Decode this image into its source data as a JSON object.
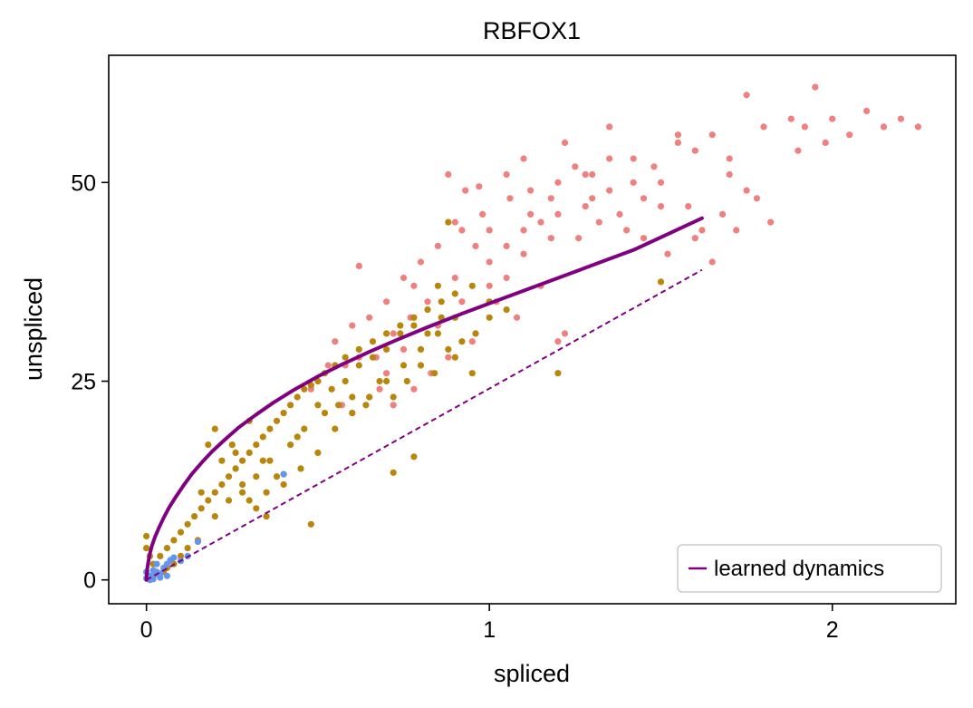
{
  "chart_data": {
    "type": "scatter",
    "title": "RBFOX1",
    "xlabel": "spliced",
    "ylabel": "unspliced",
    "xlim": [
      -0.11,
      2.36
    ],
    "ylim": [
      -3,
      66
    ],
    "xticks": [
      0,
      1,
      2
    ],
    "yticks": [
      0,
      25,
      50
    ],
    "grid": false,
    "legend": {
      "position": "lower-right",
      "entries": [
        "learned dynamics"
      ]
    },
    "colors": {
      "cluster_a": "#f08080",
      "cluster_b": "#b8860b",
      "cluster_c": "#6495ed",
      "dynamics": "#800080"
    },
    "series": [
      {
        "color": "#f08080",
        "points": [
          [
            0.88,
            51
          ],
          [
            0.93,
            49
          ],
          [
            0.97,
            49.5
          ],
          [
            1.05,
            51
          ],
          [
            1.12,
            49
          ],
          [
            1.2,
            50
          ],
          [
            1.25,
            52
          ],
          [
            1.3,
            51
          ],
          [
            1.35,
            53
          ],
          [
            1.42,
            53
          ],
          [
            1.48,
            52
          ],
          [
            1.55,
            55
          ],
          [
            1.6,
            54
          ],
          [
            1.65,
            56
          ],
          [
            1.7,
            53
          ],
          [
            1.75,
            61
          ],
          [
            1.8,
            57
          ],
          [
            1.88,
            58
          ],
          [
            1.92,
            57
          ],
          [
            1.95,
            62
          ],
          [
            2.0,
            58
          ],
          [
            2.05,
            56
          ],
          [
            2.1,
            59
          ],
          [
            2.15,
            57
          ],
          [
            2.2,
            58
          ],
          [
            2.25,
            57
          ],
          [
            1.55,
            56
          ],
          [
            1.35,
            57
          ],
          [
            1.22,
            55
          ],
          [
            1.1,
            53
          ],
          [
            0.98,
            46
          ],
          [
            0.92,
            44
          ],
          [
            0.85,
            42
          ],
          [
            0.8,
            40
          ],
          [
            0.75,
            38
          ],
          [
            0.7,
            35
          ],
          [
            0.65,
            33
          ],
          [
            0.6,
            32
          ],
          [
            0.55,
            30
          ],
          [
            0.62,
            39.5
          ],
          [
            0.78,
            37
          ],
          [
            0.9,
            38
          ],
          [
            1.0,
            40
          ],
          [
            1.05,
            42
          ],
          [
            1.1,
            44
          ],
          [
            1.15,
            45
          ],
          [
            1.2,
            46
          ],
          [
            1.28,
            47
          ],
          [
            1.32,
            45
          ],
          [
            1.38,
            46
          ],
          [
            1.45,
            48
          ],
          [
            1.5,
            47
          ],
          [
            1.58,
            47
          ],
          [
            1.62,
            44
          ],
          [
            1.68,
            46
          ],
          [
            1.72,
            44
          ],
          [
            1.78,
            48
          ],
          [
            1.82,
            45
          ],
          [
            1.9,
            54
          ],
          [
            1.98,
            55
          ],
          [
            1.02,
            35
          ],
          [
            1.08,
            33
          ],
          [
            1.15,
            37
          ],
          [
            1.2,
            30
          ],
          [
            1.22,
            31
          ],
          [
            0.95,
            30
          ],
          [
            0.88,
            28
          ],
          [
            0.83,
            26
          ],
          [
            0.78,
            24
          ],
          [
            0.72,
            22
          ],
          [
            0.68,
            24
          ],
          [
            0.6,
            21
          ],
          [
            0.57,
            22
          ],
          [
            0.65,
            23
          ],
          [
            0.7,
            26
          ],
          [
            0.75,
            29
          ],
          [
            0.85,
            32
          ],
          [
            0.92,
            35
          ],
          [
            1.0,
            37
          ],
          [
            1.05,
            38
          ],
          [
            1.1,
            41
          ],
          [
            1.18,
            43
          ],
          [
            1.26,
            43
          ],
          [
            1.3,
            48
          ],
          [
            1.4,
            44
          ],
          [
            1.45,
            43
          ],
          [
            1.52,
            41
          ],
          [
            1.6,
            43
          ],
          [
            1.65,
            40
          ],
          [
            1.7,
            51
          ],
          [
            1.75,
            49
          ],
          [
            1.5,
            50
          ],
          [
            1.42,
            50
          ],
          [
            1.35,
            49
          ],
          [
            1.28,
            51
          ],
          [
            1.18,
            48
          ],
          [
            1.12,
            46
          ],
          [
            1.06,
            48
          ],
          [
            1.0,
            44
          ],
          [
            0.96,
            42
          ],
          [
            0.9,
            45
          ],
          [
            0.82,
            35
          ],
          [
            0.77,
            33
          ],
          [
            0.72,
            31
          ],
          [
            0.67,
            28
          ],
          [
            0.62,
            28
          ],
          [
            0.58,
            27
          ],
          [
            0.53,
            27
          ],
          [
            0.5,
            25
          ],
          [
            0.48,
            24
          ]
        ]
      },
      {
        "color": "#b8860b",
        "points": [
          [
            0.02,
            2
          ],
          [
            0.04,
            3
          ],
          [
            0.06,
            4
          ],
          [
            0.08,
            5
          ],
          [
            0.1,
            6
          ],
          [
            0.12,
            7
          ],
          [
            0.14,
            8
          ],
          [
            0.16,
            9
          ],
          [
            0.18,
            10
          ],
          [
            0.2,
            11
          ],
          [
            0.22,
            12
          ],
          [
            0.24,
            13
          ],
          [
            0.26,
            14
          ],
          [
            0.28,
            15
          ],
          [
            0.3,
            16
          ],
          [
            0.32,
            17
          ],
          [
            0.34,
            18
          ],
          [
            0.36,
            19
          ],
          [
            0.38,
            20
          ],
          [
            0.4,
            21
          ],
          [
            0.42,
            22
          ],
          [
            0.44,
            23
          ],
          [
            0.46,
            24
          ],
          [
            0.48,
            24.5
          ],
          [
            0.5,
            25
          ],
          [
            0.52,
            26
          ],
          [
            0.55,
            27
          ],
          [
            0.58,
            28
          ],
          [
            0.62,
            29
          ],
          [
            0.66,
            30
          ],
          [
            0.7,
            31
          ],
          [
            0.74,
            32
          ],
          [
            0.78,
            33
          ],
          [
            0.82,
            34
          ],
          [
            0.86,
            35
          ],
          [
            0.9,
            36
          ],
          [
            0.95,
            37
          ],
          [
            1.0,
            35
          ],
          [
            1.05,
            34
          ],
          [
            0.2,
            19
          ],
          [
            0.18,
            17
          ],
          [
            0.25,
            17
          ],
          [
            0.28,
            12
          ],
          [
            0.3,
            10
          ],
          [
            0.32,
            9
          ],
          [
            0.35,
            8
          ],
          [
            0.4,
            12
          ],
          [
            0.45,
            14
          ],
          [
            0.5,
            16
          ],
          [
            0.55,
            19
          ],
          [
            0.6,
            21
          ],
          [
            0.65,
            23
          ],
          [
            0.7,
            25
          ],
          [
            0.75,
            27
          ],
          [
            0.8,
            29
          ],
          [
            0.85,
            31
          ],
          [
            0.9,
            33
          ],
          [
            0.15,
            5
          ],
          [
            0.12,
            4
          ],
          [
            0.1,
            3
          ],
          [
            0.08,
            2
          ],
          [
            0.06,
            1.5
          ],
          [
            0.05,
            1
          ],
          [
            0.03,
            0.8
          ],
          [
            0.01,
            0.5
          ],
          [
            0.0,
            5.5
          ],
          [
            0.0,
            4
          ],
          [
            0.01,
            3
          ],
          [
            0.22,
            15
          ],
          [
            0.26,
            16
          ],
          [
            0.3,
            20
          ],
          [
            0.34,
            15
          ],
          [
            0.38,
            13
          ],
          [
            0.42,
            17
          ],
          [
            0.46,
            19
          ],
          [
            0.5,
            22
          ],
          [
            0.54,
            24
          ],
          [
            0.58,
            25
          ],
          [
            0.62,
            27
          ],
          [
            0.66,
            28
          ],
          [
            0.7,
            29
          ],
          [
            0.74,
            31
          ],
          [
            0.78,
            32
          ],
          [
            0.82,
            31
          ],
          [
            0.86,
            33
          ],
          [
            0.9,
            28
          ],
          [
            0.95,
            26
          ],
          [
            1.2,
            26
          ],
          [
            1.5,
            37.5
          ],
          [
            0.78,
            15.5
          ],
          [
            0.72,
            13.5
          ],
          [
            0.48,
            7
          ],
          [
            0.4,
            13.3
          ],
          [
            0.35,
            11
          ],
          [
            0.16,
            11
          ],
          [
            0.2,
            8
          ],
          [
            0.24,
            10
          ],
          [
            0.28,
            11
          ],
          [
            0.32,
            13
          ],
          [
            0.36,
            15
          ],
          [
            0.44,
            18
          ],
          [
            0.52,
            21
          ],
          [
            0.56,
            22
          ],
          [
            0.6,
            23
          ],
          [
            0.64,
            22
          ],
          [
            0.68,
            25
          ],
          [
            0.72,
            23
          ],
          [
            0.76,
            25
          ],
          [
            0.8,
            27
          ],
          [
            0.84,
            26
          ],
          [
            0.88,
            29
          ],
          [
            0.92,
            30
          ],
          [
            0.96,
            31
          ],
          [
            1.0,
            33
          ],
          [
            0.88,
            45
          ],
          [
            0.85,
            37
          ]
        ]
      },
      {
        "color": "#6495ed",
        "points": [
          [
            0.0,
            0.2
          ],
          [
            0.01,
            0.5
          ],
          [
            0.02,
            0.4
          ],
          [
            0.03,
            1.0
          ],
          [
            0.04,
            0.8
          ],
          [
            0.05,
            1.5
          ],
          [
            0.06,
            2.0
          ],
          [
            0.07,
            2.5
          ],
          [
            0.08,
            2.8
          ],
          [
            0.1,
            2.4
          ],
          [
            0.12,
            3.0
          ],
          [
            0.15,
            4.8
          ],
          [
            0.02,
            1.2
          ],
          [
            0.03,
            2.0
          ],
          [
            0.04,
            0.3
          ],
          [
            0.06,
            0.5
          ],
          [
            0.0,
            1.0
          ],
          [
            0.01,
            0.0
          ],
          [
            0.02,
            0.1
          ],
          [
            0.4,
            13.3
          ]
        ]
      }
    ],
    "dynamics_curve": {
      "label": "learned dynamics",
      "x": [
        0.0,
        0.001,
        0.003,
        0.006,
        0.01,
        0.016,
        0.025,
        0.037,
        0.05,
        0.066,
        0.085,
        0.107,
        0.132,
        0.16,
        0.19,
        0.23,
        0.27,
        0.32,
        0.37,
        0.43,
        0.5,
        0.57,
        0.65,
        0.73,
        0.82,
        0.92,
        1.02,
        1.12,
        1.22,
        1.32,
        1.42,
        1.52,
        1.62
      ],
      "y": [
        0.0,
        0.8,
        1.6,
        2.4,
        3.3,
        4.3,
        5.4,
        6.6,
        7.8,
        9.1,
        10.4,
        11.8,
        13.3,
        14.7,
        16.1,
        17.7,
        19.2,
        20.8,
        22.3,
        23.9,
        25.6,
        27.1,
        28.7,
        30.2,
        31.8,
        33.5,
        35.1,
        36.7,
        38.3,
        39.9,
        41.5,
        43.5,
        45.5
      ]
    },
    "steady_state_line": {
      "x": [
        0.0,
        1.62
      ],
      "y": [
        0.0,
        39.0
      ]
    }
  }
}
